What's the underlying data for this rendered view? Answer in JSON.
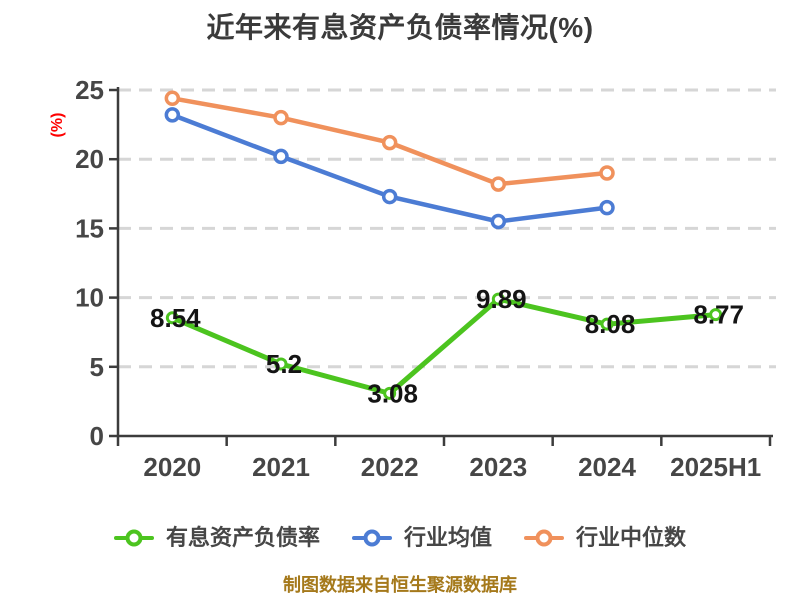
{
  "chart_data": {
    "type": "line",
    "title": "近年来有息资产负债率情况(%)",
    "ylabel": "(%)",
    "ylim": [
      0,
      25
    ],
    "yticks": [
      0,
      5,
      10,
      15,
      20,
      25
    ],
    "categories": [
      "2020",
      "2021",
      "2022",
      "2023",
      "2024",
      "2025H1"
    ],
    "series": [
      {
        "name": "有息资产负债率",
        "color": "#4cc41f",
        "values": [
          8.54,
          5.2,
          3.08,
          9.89,
          8.08,
          8.77
        ],
        "data_labels": true
      },
      {
        "name": "行业均值",
        "color": "#4c7cd4",
        "values": [
          23.2,
          20.2,
          17.3,
          15.5,
          16.5,
          null
        ],
        "data_labels": false
      },
      {
        "name": "行业中位数",
        "color": "#f0915c",
        "values": [
          24.4,
          23.0,
          21.2,
          18.2,
          19.0,
          null
        ],
        "data_labels": false
      }
    ],
    "grid": "horizontal-dashed",
    "legend_position": "bottom",
    "style": {
      "background": "#ffffff",
      "axis_color": "#3c3c3c",
      "grid_color": "#d6d6d6",
      "tick_text_color": "#464646",
      "title_color": "#3a3a3a",
      "data_label_color": "#141414",
      "ylabel_color": "#fe0000",
      "legend_text_color": "#464646"
    }
  },
  "footer": {
    "text": "制图数据来自恒生聚源数据库",
    "color": "#a5791b"
  }
}
